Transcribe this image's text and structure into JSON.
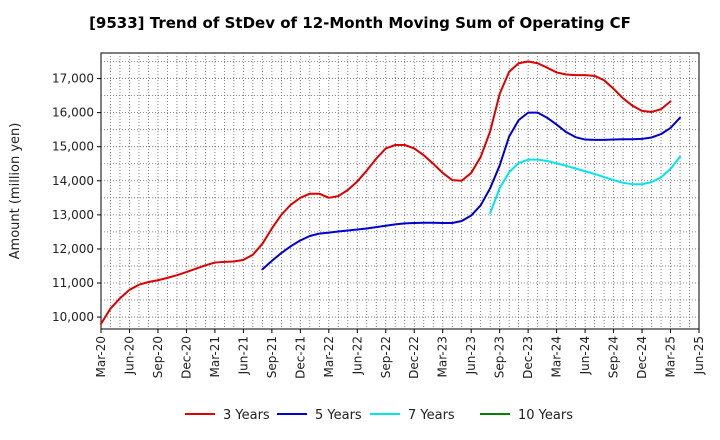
{
  "chart_data": {
    "type": "line",
    "title": "[9533]  Trend of StDev of 12-Month Moving Sum of Operating CF",
    "ylabel": "Amount (million yen)",
    "xlabel": "",
    "ylim": [
      9650,
      17750
    ],
    "yticks": [
      10000,
      11000,
      12000,
      13000,
      14000,
      15000,
      16000,
      17000
    ],
    "ytick_labels": [
      "10,000",
      "11,000",
      "12,000",
      "13,000",
      "14,000",
      "15,000",
      "16,000",
      "17,000"
    ],
    "x_start": "Mar-20",
    "x_end": "Mar-25",
    "xtick_labels": [
      "Mar-20",
      "Jun-20",
      "Sep-20",
      "Dec-20",
      "Mar-21",
      "Jun-21",
      "Sep-21",
      "Dec-21",
      "Mar-22",
      "Jun-22",
      "Sep-22",
      "Dec-22",
      "Mar-23",
      "Jun-23",
      "Sep-23",
      "Dec-23",
      "Mar-24",
      "Jun-24",
      "Sep-24",
      "Dec-24",
      "Mar-25",
      "Jun-25"
    ],
    "grid": true,
    "legend_position": "bottom",
    "series": [
      {
        "name": "3 Years",
        "color": "#dd0000",
        "start": "Mar-20",
        "values": [
          9800,
          10250,
          10550,
          10800,
          10950,
          11030,
          11080,
          11150,
          11230,
          11320,
          11420,
          11520,
          11600,
          11620,
          11630,
          11680,
          11830,
          12150,
          12600,
          13000,
          13300,
          13500,
          13620,
          13620,
          13500,
          13550,
          13730,
          13980,
          14300,
          14650,
          14950,
          15050,
          15050,
          14950,
          14750,
          14500,
          14230,
          14020,
          14000,
          14230,
          14700,
          15450,
          16550,
          17200,
          17450,
          17500,
          17450,
          17320,
          17180,
          17120,
          17100,
          17100,
          17080,
          16950,
          16700,
          16420,
          16200,
          16050,
          16020,
          16100,
          16330
        ]
      },
      {
        "name": "5 Years",
        "color": "#0000cc",
        "start": "Aug-21",
        "values": [
          11400,
          11650,
          11880,
          12080,
          12250,
          12380,
          12450,
          12480,
          12510,
          12540,
          12570,
          12600,
          12640,
          12680,
          12720,
          12750,
          12760,
          12770,
          12770,
          12760,
          12760,
          12820,
          12980,
          13280,
          13780,
          14450,
          15300,
          15780,
          16000,
          16000,
          15850,
          15650,
          15430,
          15280,
          15210,
          15200,
          15200,
          15210,
          15220,
          15220,
          15230,
          15270,
          15370,
          15550,
          15850
        ]
      },
      {
        "name": "7 Years",
        "color": "#00e5ee",
        "start": "Aug-23",
        "values": [
          13050,
          13780,
          14250,
          14520,
          14620,
          14620,
          14580,
          14510,
          14440,
          14360,
          14280,
          14200,
          14110,
          14020,
          13940,
          13900,
          13900,
          13960,
          14100,
          14350,
          14700
        ]
      },
      {
        "name": "10 Years",
        "color": "#008000",
        "start": "Mar-25",
        "values": []
      }
    ]
  }
}
